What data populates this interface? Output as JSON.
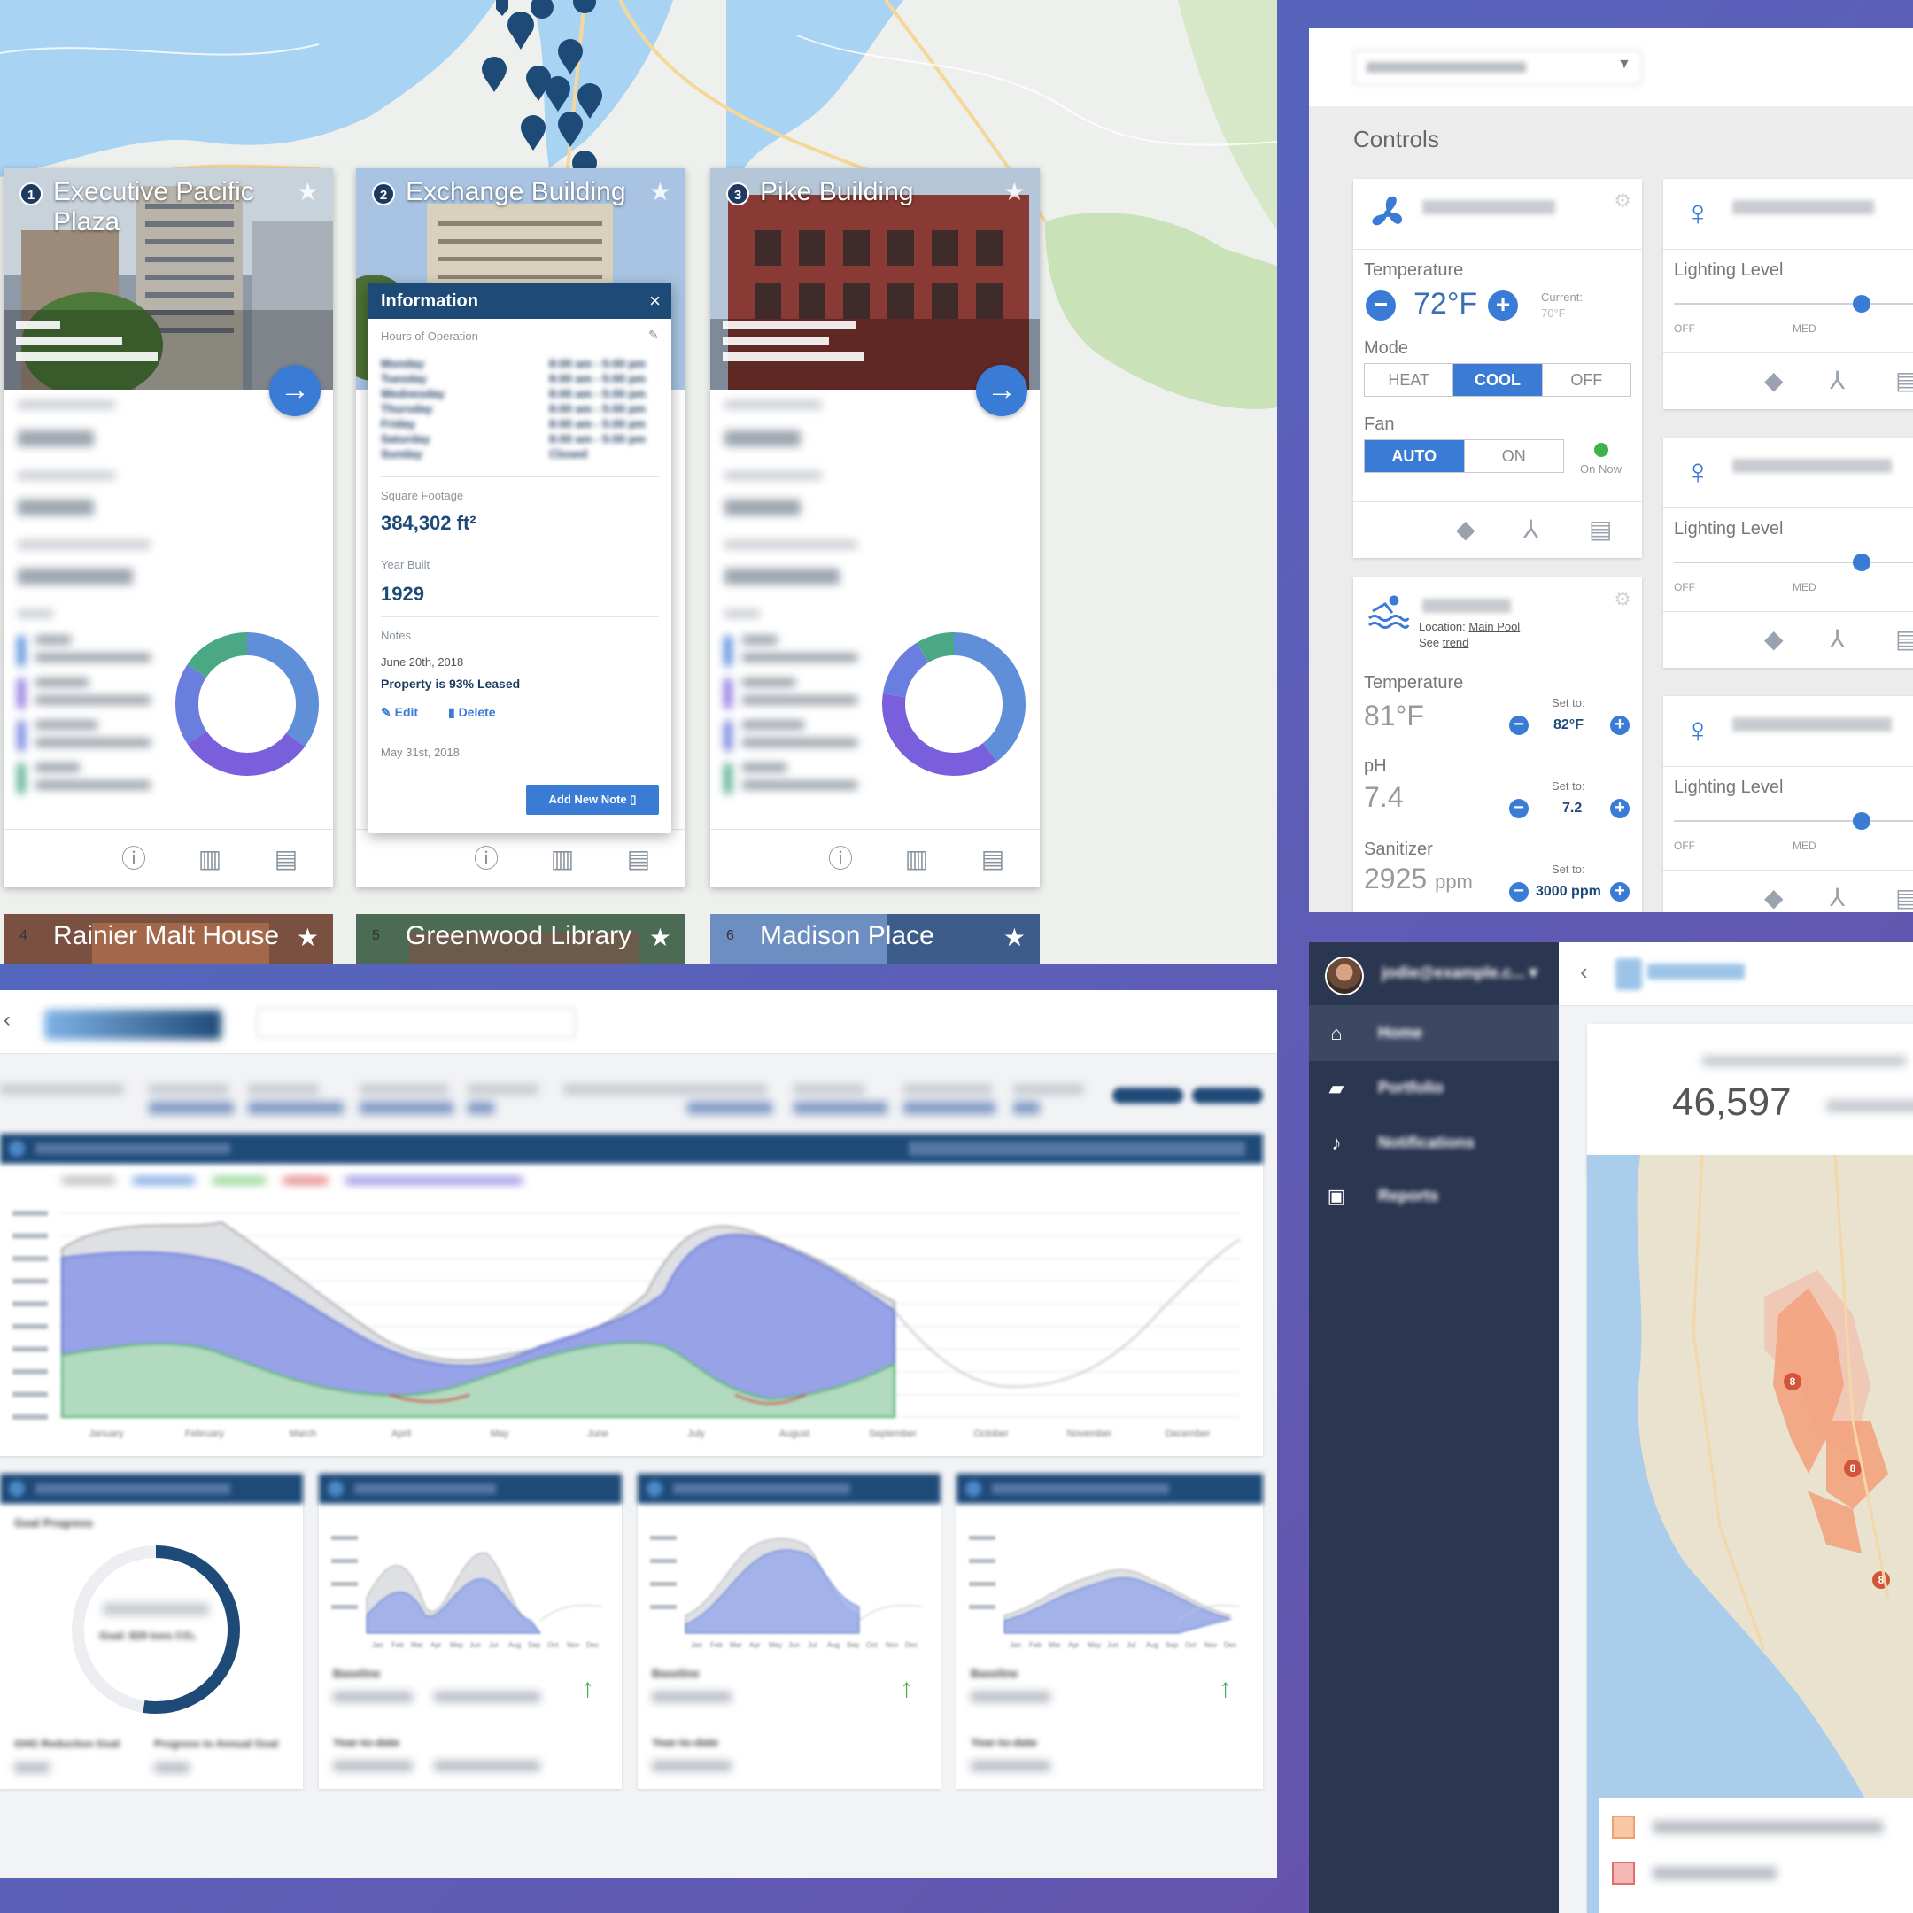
{
  "portfolio": {
    "buildings": [
      {
        "number": "1",
        "name": "Executive Pacific Plaza"
      },
      {
        "number": "2",
        "name": "Exchange Building"
      },
      {
        "number": "3",
        "name": "Pike Building"
      },
      {
        "number": "4",
        "name": "Rainier Malt House"
      },
      {
        "number": "5",
        "name": "Greenwood Library"
      },
      {
        "number": "6",
        "name": "Madison Place"
      }
    ],
    "info_popup": {
      "title": "Information",
      "close": "×",
      "hours_label": "Hours of Operation",
      "hours": [
        {
          "day": "Monday",
          "time": "8:00 am - 5:00 pm"
        },
        {
          "day": "Tuesday",
          "time": "8:00 am - 5:00 pm"
        },
        {
          "day": "Wednesday",
          "time": "8:00 am - 5:00 pm"
        },
        {
          "day": "Thursday",
          "time": "8:00 am - 5:00 pm"
        },
        {
          "day": "Friday",
          "time": "8:00 am - 5:00 pm"
        },
        {
          "day": "Saturday",
          "time": "8:00 am - 5:00 pm"
        },
        {
          "day": "Sunday",
          "time": "Closed"
        }
      ],
      "sqft_label": "Square Footage",
      "sqft_value": "384,302 ft²",
      "year_label": "Year Built",
      "year_value": "1929",
      "notes_label": "Notes",
      "note1_date": "June 20th, 2018",
      "note1_text": "Property is 93% Leased",
      "edit_label": "Edit",
      "delete_label": "Delete",
      "note2_date": "May 31st, 2018",
      "add_note_label": "Add New Note"
    },
    "go_icon": "arrow-right-icon",
    "star_icon": "star-icon"
  },
  "controls": {
    "heading": "Controls",
    "hvac": {
      "temperature_label": "Temperature",
      "temperature_value": "72°F",
      "current_label": "Current:",
      "current_value": "70°F",
      "mode_label": "Mode",
      "modes": [
        "HEAT",
        "COOL",
        "OFF"
      ],
      "mode_selected": "COOL",
      "fan_label": "Fan",
      "fan_modes": [
        "AUTO",
        "ON"
      ],
      "fan_selected": "AUTO",
      "fan_status": "On Now",
      "fan_status_color": "#3cb44b"
    },
    "pool": {
      "location_label": "Location:",
      "location_value": "Main Pool",
      "see_label": "See",
      "trend_link": "trend",
      "temperature_label": "Temperature",
      "temperature_value": "81°F",
      "temperature_set_label": "Set to:",
      "temperature_set": "82°F",
      "ph_label": "pH",
      "ph_value": "7.4",
      "ph_set_label": "Set to:",
      "ph_set": "7.2",
      "sanitizer_label": "Sanitizer",
      "sanitizer_value": "2925",
      "sanitizer_unit": "ppm",
      "sanitizer_set_label": "Set to:",
      "sanitizer_set": "3000 ppm"
    },
    "lights": [
      {
        "level_label": "Lighting Level",
        "off": "OFF",
        "med": "MED",
        "level": 0.8
      },
      {
        "level_label": "Lighting Level",
        "off": "OFF",
        "med": "MED",
        "level": 0.8
      },
      {
        "level_label": "Lighting Level",
        "off": "OFF",
        "med": "MED",
        "level": 0.8
      }
    ],
    "accent_color": "#3a7bd5"
  },
  "analytics": {
    "goal_progress_label": "Goal Progress",
    "goal_label": "Goal: 829 tons CO₂",
    "ghg_label": "GHG Reduction Goal",
    "progress_label": "Progress to Annual Goal",
    "baseline_label": "Baseline",
    "ytd_label": "Year-to-date",
    "main_x_ticks": [
      "January",
      "February",
      "March",
      "April",
      "May",
      "June",
      "July",
      "August",
      "September",
      "October",
      "November",
      "December"
    ],
    "mini_x_ticks": [
      "Jan",
      "Feb",
      "Mar",
      "Apr",
      "May",
      "Jun",
      "Jul",
      "Aug",
      "Sep",
      "Oct",
      "Nov",
      "Dec"
    ]
  },
  "sidebar": {
    "user_email": "jodie@example.c...",
    "items": [
      {
        "label": "Home",
        "icon": "home-icon"
      },
      {
        "label": "Portfolio",
        "icon": "folder-icon"
      },
      {
        "label": "Notifications",
        "icon": "bell-icon"
      },
      {
        "label": "Reports",
        "icon": "report-icon"
      }
    ]
  },
  "fire_map": {
    "count_value": "46,597",
    "markers": [
      "8",
      "8",
      "8"
    ]
  }
}
